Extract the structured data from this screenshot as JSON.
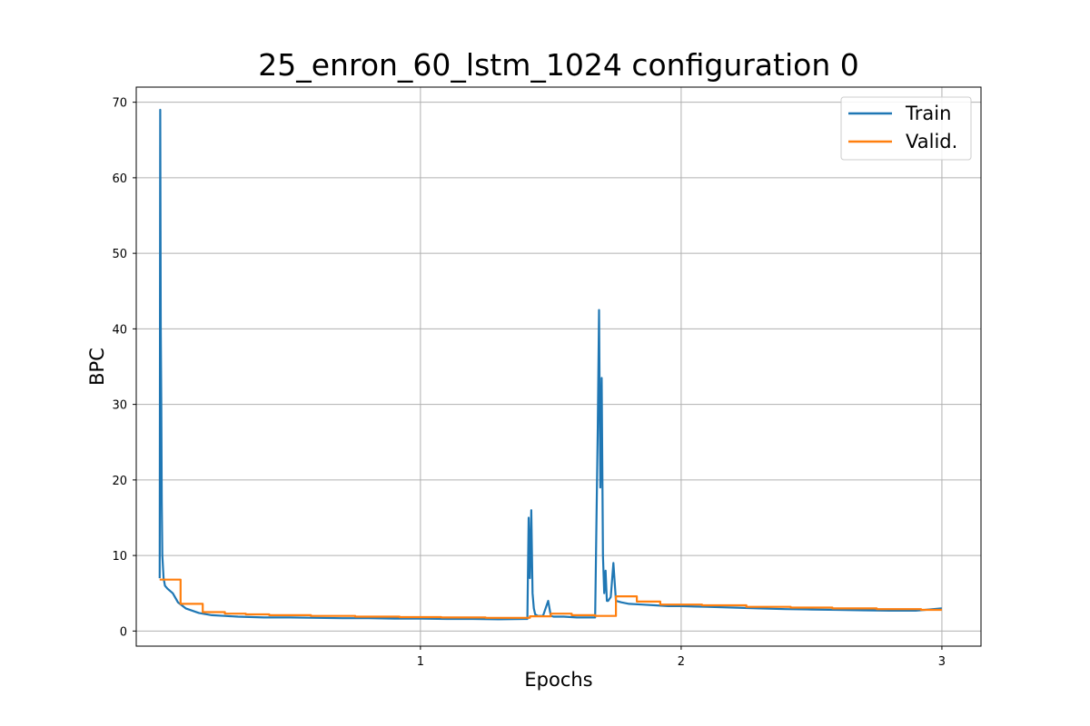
{
  "chart_data": {
    "type": "line",
    "title": "25_enron_60_lstm_1024 configuration 0",
    "xlabel": "Epochs",
    "ylabel": "BPC",
    "xlim": [
      -0.09,
      3.15
    ],
    "ylim": [
      -2,
      72
    ],
    "xticks": [
      1,
      2,
      3
    ],
    "yticks": [
      0,
      10,
      20,
      30,
      40,
      50,
      60,
      70
    ],
    "grid": true,
    "legend_position": "top-right",
    "series": [
      {
        "name": "Train",
        "color": "#1f77b4",
        "x": [
          0.0,
          0.002,
          0.004,
          0.006,
          0.008,
          0.01,
          0.015,
          0.02,
          0.03,
          0.05,
          0.07,
          0.1,
          0.15,
          0.2,
          0.25,
          0.3,
          0.4,
          0.5,
          0.6,
          0.7,
          0.8,
          0.9,
          1.0,
          1.1,
          1.2,
          1.3,
          1.4,
          1.41,
          1.415,
          1.42,
          1.425,
          1.43,
          1.435,
          1.44,
          1.45,
          1.47,
          1.49,
          1.5,
          1.51,
          1.53,
          1.55,
          1.6,
          1.65,
          1.67,
          1.68,
          1.685,
          1.69,
          1.695,
          1.7,
          1.705,
          1.71,
          1.715,
          1.72,
          1.73,
          1.74,
          1.75,
          1.77,
          1.8,
          1.85,
          1.9,
          1.95,
          2.0,
          2.1,
          2.2,
          2.3,
          2.4,
          2.5,
          2.6,
          2.7,
          2.8,
          2.9,
          3.0
        ],
        "y": [
          7.0,
          69.0,
          40.0,
          29.5,
          17.0,
          10.0,
          7.0,
          6.0,
          5.6,
          5.0,
          3.8,
          3.0,
          2.4,
          2.1,
          2.0,
          1.9,
          1.8,
          1.8,
          1.75,
          1.7,
          1.7,
          1.65,
          1.65,
          1.6,
          1.6,
          1.55,
          1.6,
          1.6,
          15.0,
          7.0,
          16.0,
          5.0,
          3.0,
          2.2,
          2.0,
          2.0,
          4.0,
          2.0,
          1.9,
          1.9,
          1.9,
          1.8,
          1.8,
          1.8,
          27.0,
          42.5,
          19.0,
          33.5,
          10.0,
          5.0,
          8.0,
          4.0,
          4.0,
          4.5,
          9.0,
          4.0,
          3.8,
          3.6,
          3.5,
          3.4,
          3.3,
          3.3,
          3.2,
          3.1,
          3.0,
          2.9,
          2.85,
          2.8,
          2.75,
          2.7,
          2.7,
          3.0
        ]
      },
      {
        "name": "Valid.",
        "color": "#ff7f0e",
        "x": [
          0.0,
          0.08,
          0.08,
          0.165,
          0.165,
          0.25,
          0.25,
          0.33,
          0.33,
          0.42,
          0.42,
          0.58,
          0.58,
          0.75,
          0.75,
          0.92,
          0.92,
          1.08,
          1.08,
          1.25,
          1.25,
          1.42,
          1.42,
          1.5,
          1.5,
          1.58,
          1.58,
          1.67,
          1.67,
          1.75,
          1.75,
          1.83,
          1.83,
          1.92,
          1.92,
          2.08,
          2.08,
          2.25,
          2.25,
          2.42,
          2.42,
          2.58,
          2.58,
          2.75,
          2.75,
          2.92,
          2.92,
          3.0
        ],
        "y": [
          6.8,
          6.8,
          3.6,
          3.6,
          2.5,
          2.5,
          2.3,
          2.3,
          2.2,
          2.2,
          2.1,
          2.1,
          2.0,
          2.0,
          1.9,
          1.9,
          1.85,
          1.85,
          1.8,
          1.8,
          1.75,
          1.75,
          1.95,
          1.95,
          2.3,
          2.3,
          2.1,
          2.1,
          2.0,
          2.0,
          4.6,
          4.6,
          3.9,
          3.9,
          3.5,
          3.5,
          3.4,
          3.4,
          3.2,
          3.2,
          3.1,
          3.1,
          3.0,
          3.0,
          2.9,
          2.9,
          2.8,
          2.8
        ]
      }
    ]
  }
}
